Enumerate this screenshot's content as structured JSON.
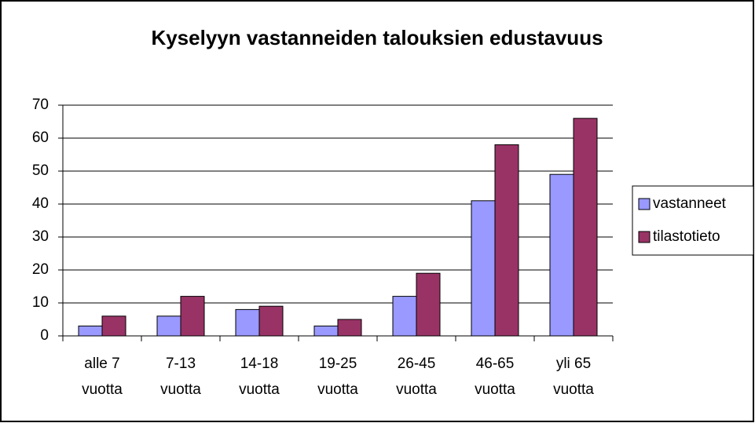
{
  "chart_data": {
    "type": "bar",
    "title": "Kyselyyn vastanneiden talouksien edustavuus",
    "categories": [
      "alle 7\nvuotta",
      "7-13\nvuotta",
      "14-18\nvuotta",
      "19-25\nvuotta",
      "26-45\nvuotta",
      "46-65\nvuotta",
      "yli 65\nvuotta"
    ],
    "series": [
      {
        "name": "vastanneet",
        "color": "#9999ff",
        "values": [
          3,
          6,
          8,
          3,
          12,
          41,
          49
        ]
      },
      {
        "name": "tilastotieto",
        "color": "#993366",
        "values": [
          6,
          12,
          9,
          5,
          19,
          58,
          66
        ]
      }
    ],
    "ylim": [
      0,
      70
    ],
    "yticks": [
      0,
      10,
      20,
      30,
      40,
      50,
      60,
      70
    ],
    "grid": true,
    "legend": "right"
  }
}
